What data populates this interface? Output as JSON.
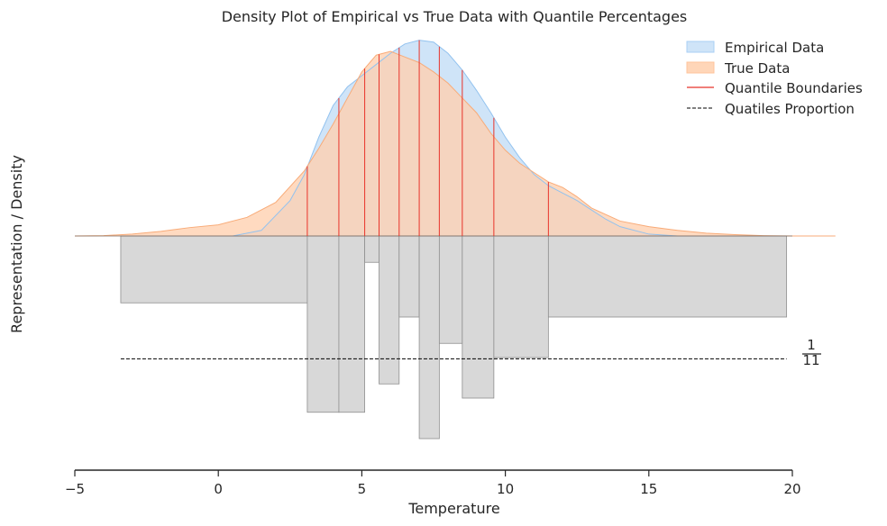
{
  "chart_data": {
    "type": "area",
    "title": "Density Plot of Empirical vs True Data with Quantile Percentages",
    "xlabel": "Temperature",
    "ylabel": "Representation / Density",
    "xlim": [
      -5,
      20
    ],
    "x_ticks": [
      -5,
      0,
      5,
      10,
      15,
      20
    ],
    "fraction_label": {
      "numerator": "1",
      "denominator": "11"
    },
    "legend": {
      "placement": "top-right",
      "entries": [
        {
          "label": "Empirical Data",
          "kind": "patch",
          "color": "#a9cff5"
        },
        {
          "label": "True Data",
          "kind": "patch",
          "color": "#ffc49b"
        },
        {
          "label": "Quantile Boundaries",
          "kind": "line",
          "color": "#e8332a"
        },
        {
          "label": "Quatiles Proportion",
          "kind": "dashed",
          "color": "#000000"
        }
      ]
    },
    "colors": {
      "empirical_fill": "#cfe4f8",
      "empirical_edge": "#92c2ef",
      "true_fill": "#ffcfae",
      "true_edge": "#f8ab78",
      "overlap_fill": "#e6c7b6",
      "quantile_line": "#e8332a",
      "bar_fill": "#d8d8d8",
      "bar_edge": "#8f8f8f"
    },
    "density_scale_note": "relative density, unitless",
    "series": [
      {
        "name": "Empirical Data",
        "x": [
          0.5,
          1.5,
          2.5,
          3.0,
          3.5,
          4.0,
          4.5,
          5.0,
          5.5,
          6.0,
          6.5,
          7.0,
          7.5,
          8.0,
          8.5,
          9.0,
          9.5,
          10.0,
          10.5,
          11.0,
          11.5,
          12.0,
          12.5,
          13.0,
          13.5,
          14.0,
          15.0,
          16.0
        ],
        "y": [
          0.0,
          0.03,
          0.19,
          0.33,
          0.53,
          0.7,
          0.8,
          0.86,
          0.92,
          0.98,
          1.03,
          1.05,
          1.04,
          0.98,
          0.89,
          0.78,
          0.66,
          0.53,
          0.42,
          0.33,
          0.27,
          0.23,
          0.19,
          0.14,
          0.09,
          0.05,
          0.01,
          0.0
        ]
      },
      {
        "name": "True Data",
        "x": [
          -5.0,
          -4.0,
          -3.0,
          -2.0,
          -1.0,
          0.0,
          1.0,
          2.0,
          3.0,
          3.5,
          4.0,
          4.5,
          5.0,
          5.5,
          6.0,
          6.5,
          7.0,
          7.5,
          8.0,
          8.5,
          9.0,
          9.5,
          10.0,
          10.5,
          11.0,
          11.5,
          12.0,
          12.5,
          13.0,
          14.0,
          15.0,
          16.0,
          17.0,
          18.0,
          19.0,
          20.0,
          21.5
        ],
        "y": [
          0.0,
          0.002,
          0.01,
          0.025,
          0.045,
          0.06,
          0.1,
          0.18,
          0.35,
          0.47,
          0.6,
          0.74,
          0.88,
          0.97,
          0.99,
          0.96,
          0.93,
          0.88,
          0.82,
          0.74,
          0.66,
          0.55,
          0.46,
          0.39,
          0.34,
          0.29,
          0.26,
          0.21,
          0.15,
          0.08,
          0.05,
          0.03,
          0.015,
          0.007,
          0.002,
          0.0,
          0.0
        ]
      }
    ],
    "quantile_boundaries": [
      3.1,
      4.2,
      5.1,
      5.6,
      6.3,
      7.0,
      7.7,
      8.5,
      9.6,
      11.5
    ],
    "quantile_bars": [
      {
        "x_start": -3.4,
        "x_end": 3.1,
        "proportion": 0.033
      },
      {
        "x_start": 3.1,
        "x_end": 4.2,
        "proportion": 0.087
      },
      {
        "x_start": 4.2,
        "x_end": 5.1,
        "proportion": 0.087
      },
      {
        "x_start": 5.1,
        "x_end": 5.6,
        "proportion": 0.013
      },
      {
        "x_start": 5.6,
        "x_end": 6.3,
        "proportion": 0.073
      },
      {
        "x_start": 6.3,
        "x_end": 7.0,
        "proportion": 0.04
      },
      {
        "x_start": 7.0,
        "x_end": 7.7,
        "proportion": 0.1
      },
      {
        "x_start": 7.7,
        "x_end": 8.5,
        "proportion": 0.053
      },
      {
        "x_start": 8.5,
        "x_end": 9.6,
        "proportion": 0.08
      },
      {
        "x_start": 9.6,
        "x_end": 11.5,
        "proportion": 0.06
      },
      {
        "x_start": 11.5,
        "x_end": 19.8,
        "proportion": 0.04
      }
    ],
    "reference_line": {
      "value": 0.0606,
      "x_start": -3.4,
      "x_end": 19.8
    }
  }
}
